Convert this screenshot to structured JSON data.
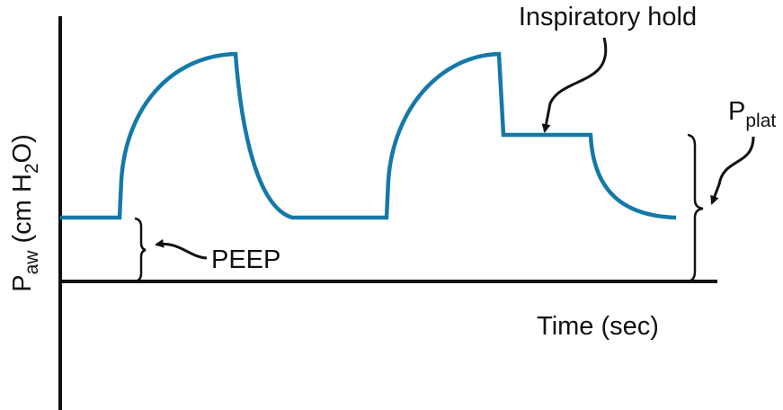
{
  "axis_labels": {
    "y": {
      "symbol": "P",
      "subscript": "aw",
      "unit_start": " (cm H",
      "unit_subscript": "2",
      "unit_end": "O)"
    },
    "x": "Time (sec)"
  },
  "annotations": {
    "hold": "Inspiratory hold",
    "plateau": {
      "symbol": "P",
      "subscript": "plat"
    },
    "peep": "PEEP"
  }
}
